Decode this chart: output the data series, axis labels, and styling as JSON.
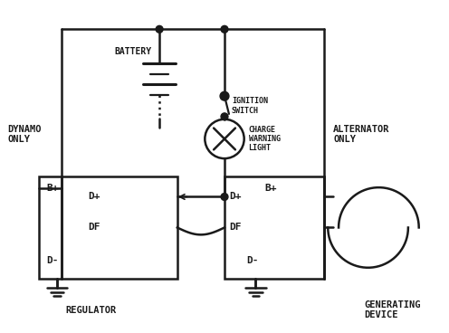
{
  "bg_color": "#ffffff",
  "line_color": "#1a1a1a",
  "labels": {
    "dynamo_only": "DYNAMO\nONLY",
    "alternator_only": "ALTERNATOR\nONLY",
    "battery": "BATTERY",
    "ignition_switch": "IGNITION\nSWITCH",
    "charge_warning": "CHARGE\nWARNING\nLIGHT",
    "regulator": "REGULATOR",
    "generating_device": "GENERATING\nDEVICE",
    "reg_Bplus": "B+",
    "reg_Dplus": "D+",
    "reg_DF": "DF",
    "reg_Dminus": "D-",
    "gen_Dplus": "D+",
    "gen_Bplus": "B+",
    "gen_DF": "DF",
    "gen_Dminus": "D-"
  }
}
